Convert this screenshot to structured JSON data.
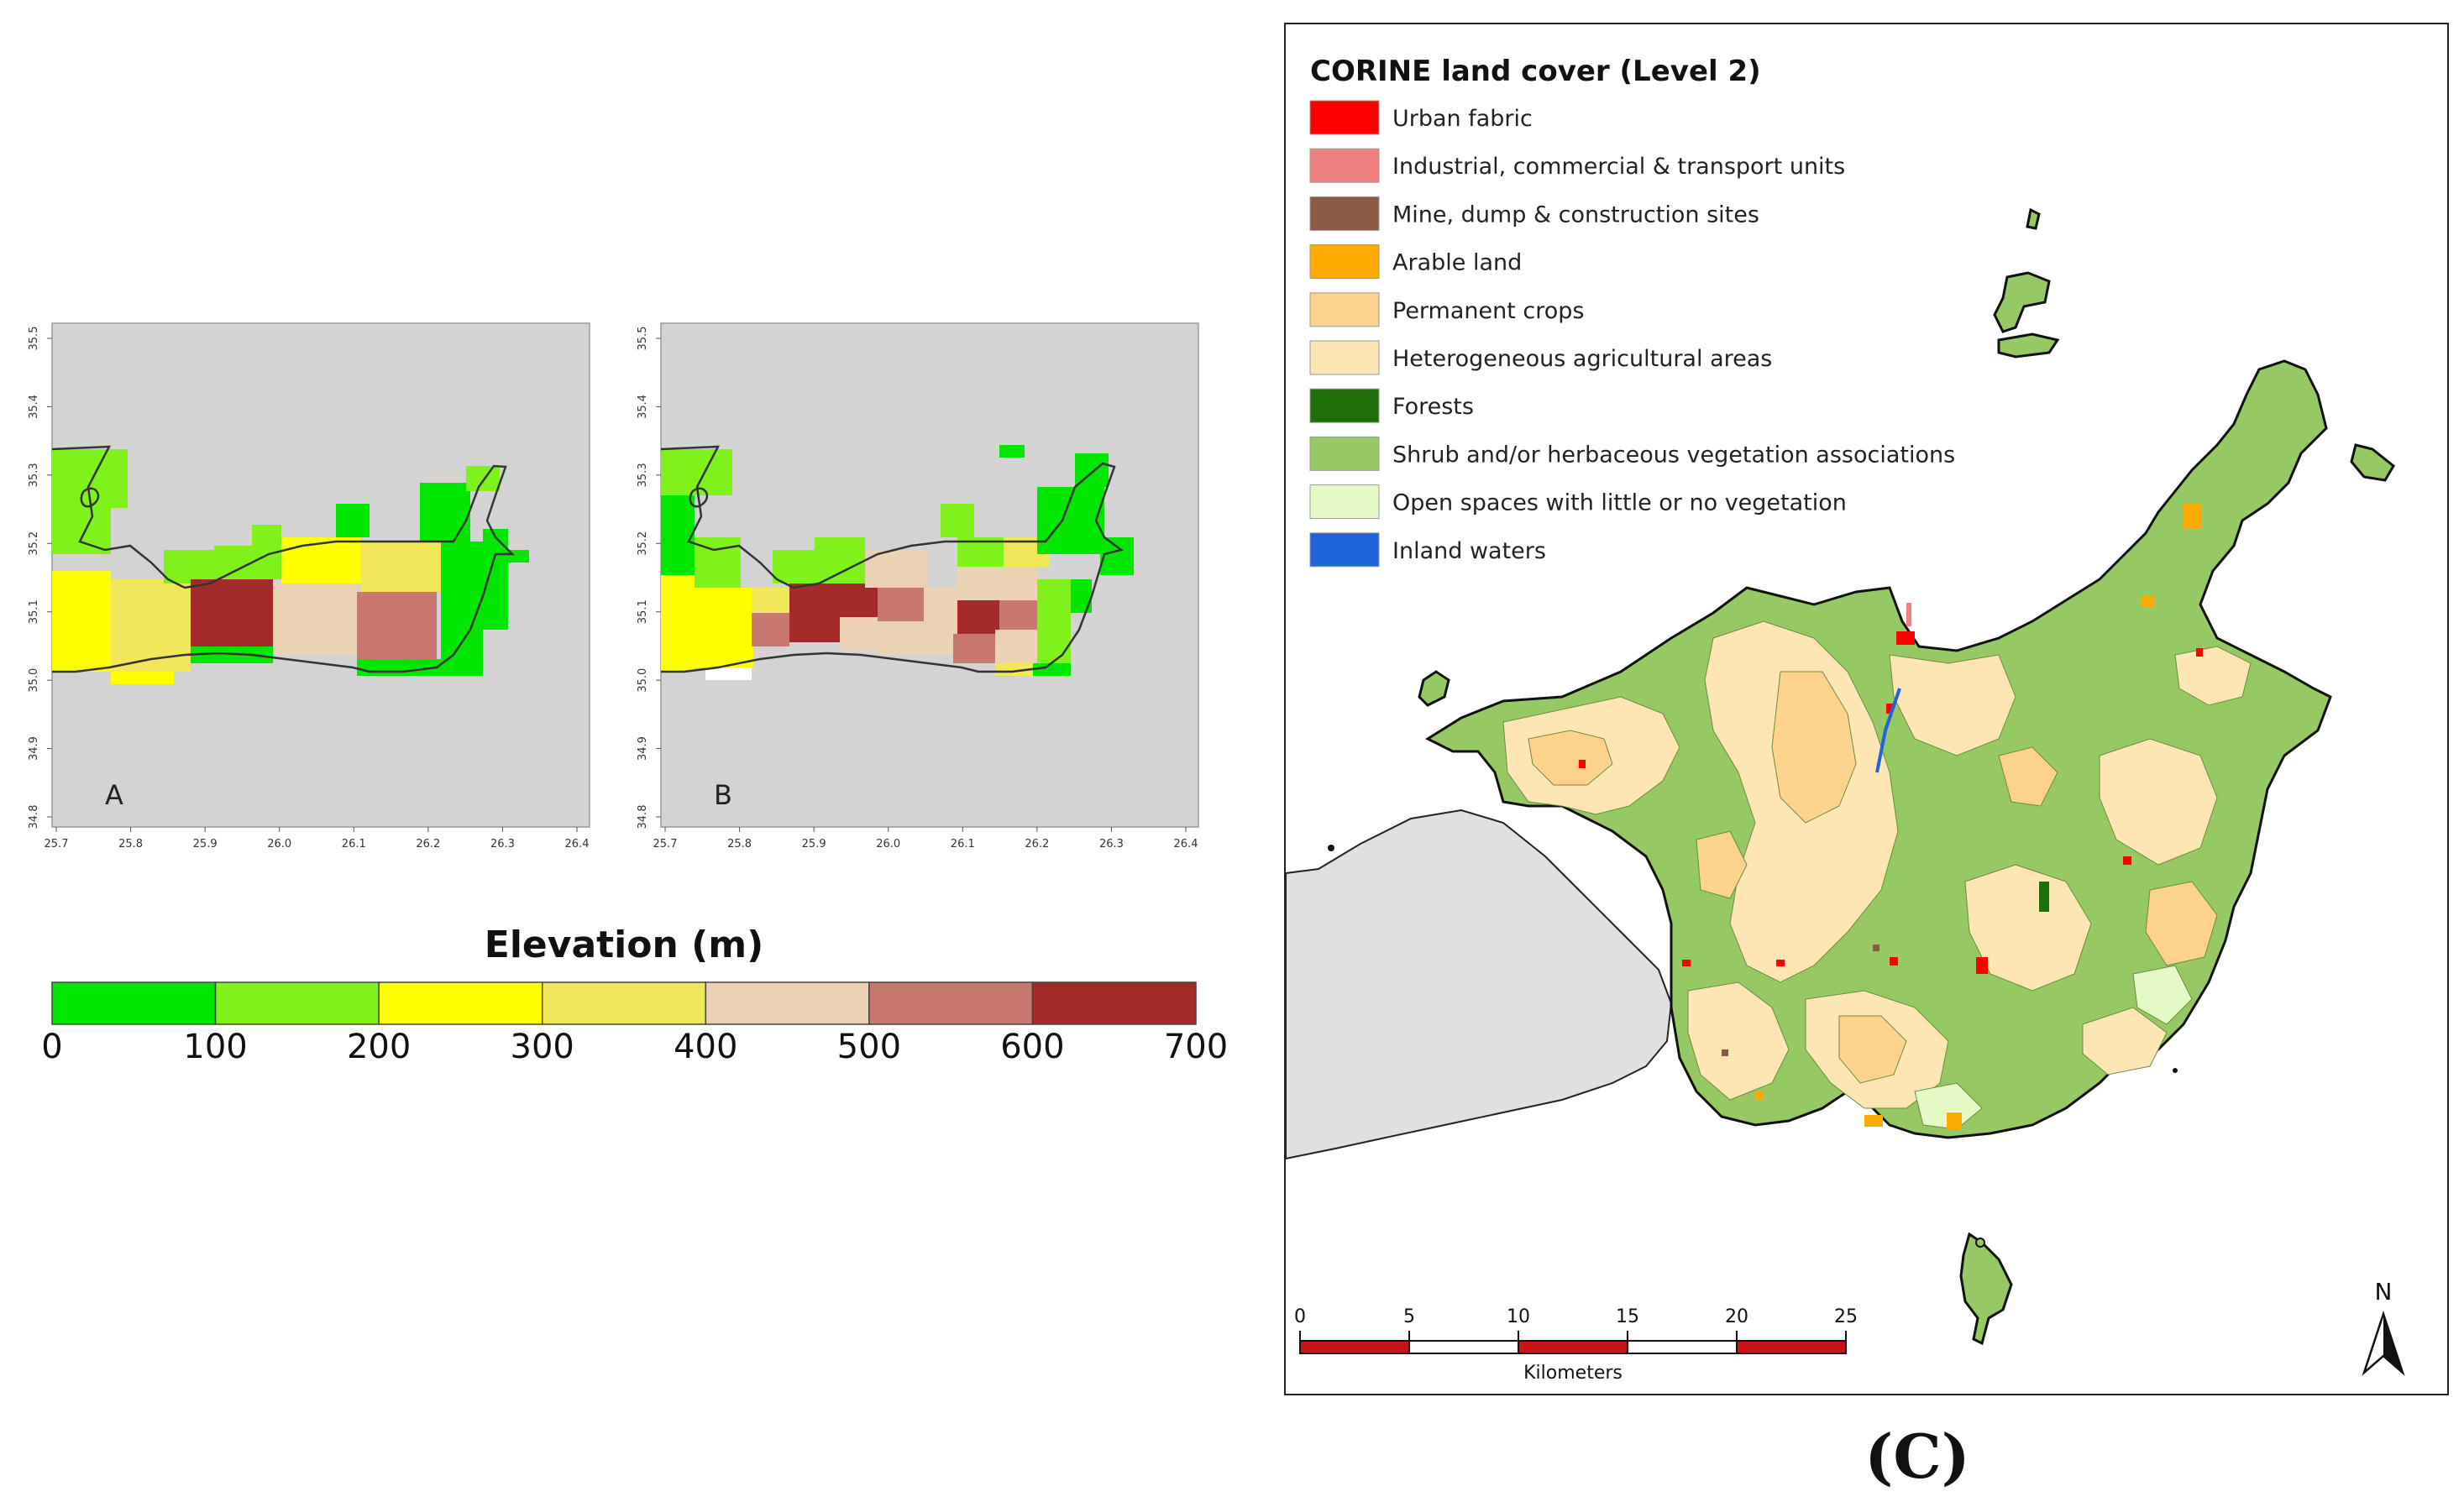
{
  "panel_a": {
    "label": "A",
    "x_ticks": [
      "25.7",
      "25.8",
      "25.9",
      "26.0",
      "26.1",
      "26.2",
      "26.3",
      "26.4"
    ],
    "y_ticks": [
      "34.8",
      "34.9",
      "35.0",
      "35.1",
      "35.2",
      "35.3",
      "35.4",
      "35.5"
    ]
  },
  "panel_b": {
    "label": "B",
    "x_ticks": [
      "25.7",
      "25.8",
      "25.9",
      "26.0",
      "26.1",
      "26.2",
      "26.3",
      "26.4"
    ],
    "y_ticks": [
      "34.8",
      "34.9",
      "35.0",
      "35.1",
      "35.2",
      "35.3",
      "35.4",
      "35.5"
    ]
  },
  "elevation_legend": {
    "title": "Elevation (m)",
    "bins": [
      {
        "from": 0,
        "to": 100,
        "color": "#00e600"
      },
      {
        "from": 100,
        "to": 200,
        "color": "#80f21b"
      },
      {
        "from": 200,
        "to": 300,
        "color": "#ffff00"
      },
      {
        "from": 300,
        "to": 400,
        "color": "#f2e65a"
      },
      {
        "from": 400,
        "to": 500,
        "color": "#ecd2b4"
      },
      {
        "from": 500,
        "to": 600,
        "color": "#c8786e"
      },
      {
        "from": 600,
        "to": 700,
        "color": "#a52a2a"
      }
    ],
    "tick_labels": [
      "0",
      "100",
      "200",
      "300",
      "400",
      "500",
      "600",
      "700"
    ]
  },
  "corine": {
    "title": "CORINE land cover  (Level 2)",
    "legend": [
      {
        "label": "Urban fabric",
        "color": "#ff0000"
      },
      {
        "label": "Industrial, commercial & transport units",
        "color": "#f08080"
      },
      {
        "label": "Mine, dump & construction sites",
        "color": "#8b5a46"
      },
      {
        "label": "Arable land",
        "color": "#ffaa00"
      },
      {
        "label": "Permanent crops",
        "color": "#fdd28c"
      },
      {
        "label": "Heterogeneous agricultural areas",
        "color": "#fde6b4"
      },
      {
        "label": "Forests",
        "color": "#1e6e0a"
      },
      {
        "label": "Shrub and/or herbaceous vegetation associations",
        "color": "#96c864"
      },
      {
        "label": "Open spaces with little or no vegetation",
        "color": "#e6fac8"
      },
      {
        "label": "Inland waters",
        "color": "#1e64dc"
      }
    ],
    "scale_ticks": [
      "0",
      "5",
      "10",
      "15",
      "20",
      "25"
    ],
    "scale_unit": "Kilometers",
    "north": "N"
  },
  "caption": "(C)"
}
